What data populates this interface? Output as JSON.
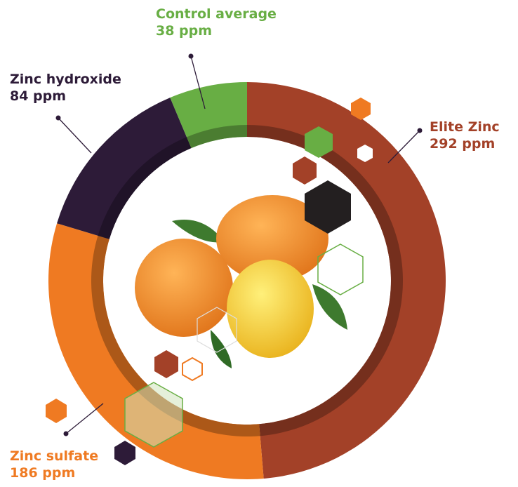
{
  "chart_data": {
    "type": "donut",
    "categories": [
      "Elite Zinc",
      "Zinc sulfate",
      "Zinc hydroxide",
      "Control average"
    ],
    "values": [
      292,
      186,
      84,
      38
    ],
    "value_labels": [
      "292 ppm",
      "186 ppm",
      "84 ppm",
      "38 ppm"
    ],
    "colors": [
      "#a34128",
      "#ef7a22",
      "#2d1b38",
      "#68ae44"
    ]
  }
}
